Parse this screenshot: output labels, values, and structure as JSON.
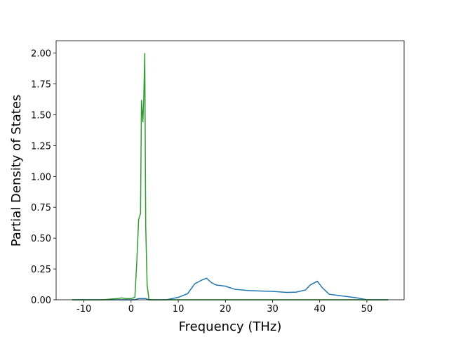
{
  "chart_data": {
    "type": "line",
    "x_label": "Frequency (THz)",
    "y_label": "Partial Density of States",
    "x": [
      -12.5,
      -6,
      -3,
      -2,
      -1,
      0,
      0.8,
      1.2,
      1.6,
      2.0,
      2.2,
      2.5,
      2.7,
      2.9,
      3.1,
      3.4,
      3.8,
      5,
      7.5,
      10,
      12,
      13.5,
      15,
      16,
      17,
      18,
      20,
      22,
      25,
      30,
      33,
      35,
      37,
      38,
      39.5,
      40.5,
      42,
      45,
      48,
      50,
      54.5
    ],
    "series": [
      {
        "name": "blue",
        "color": "#1f77b4",
        "values": [
          0,
          0,
          0,
          0,
          0,
          0,
          0,
          0.005,
          0.01,
          0.01,
          0.01,
          0.01,
          0.01,
          0.01,
          0.01,
          0.005,
          0,
          0,
          0,
          0.02,
          0.05,
          0.13,
          0.16,
          0.175,
          0.14,
          0.12,
          0.11,
          0.085,
          0.075,
          0.068,
          0.06,
          0.062,
          0.08,
          0.12,
          0.15,
          0.1,
          0.045,
          0.03,
          0.015,
          0,
          0
        ]
      },
      {
        "name": "green",
        "color": "#2ca02c",
        "values": [
          0,
          0,
          0.01,
          0.015,
          0.01,
          0.01,
          0.02,
          0.3,
          0.65,
          0.7,
          1.62,
          1.44,
          1.65,
          2.0,
          0.6,
          0.12,
          0,
          0,
          0,
          0,
          0,
          0,
          0,
          0,
          0,
          0,
          0,
          0,
          0,
          0,
          0,
          0,
          0,
          0,
          0,
          0,
          0,
          0,
          0,
          0,
          0
        ]
      }
    ],
    "xlim": [
      -15.9,
      57.9
    ],
    "xticks": [
      -10,
      0,
      10,
      20,
      30,
      40,
      50
    ],
    "ylim": [
      0,
      2.1
    ],
    "yticks": [
      {
        "value": 0,
        "label": "0.00"
      },
      {
        "value": 0.25,
        "label": "0.25"
      },
      {
        "value": 0.5,
        "label": "0.50"
      },
      {
        "value": 0.75,
        "label": "0.75"
      },
      {
        "value": 1,
        "label": "1.00"
      },
      {
        "value": 1.25,
        "label": "1.25"
      },
      {
        "value": 1.5,
        "label": "1.50"
      },
      {
        "value": 1.75,
        "label": "1.75"
      },
      {
        "value": 2,
        "label": "2.00"
      }
    ]
  }
}
